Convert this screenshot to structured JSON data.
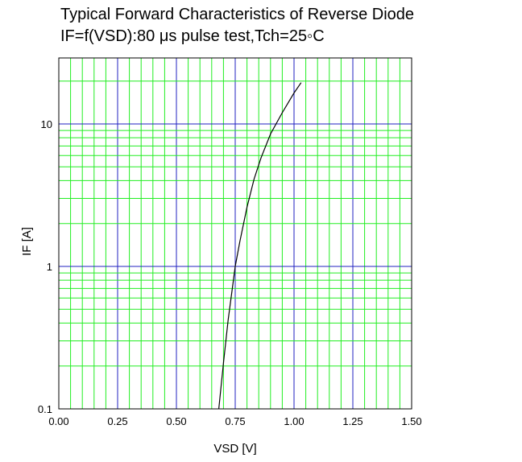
{
  "chart_data": {
    "type": "line",
    "title": "Typical Forward Characteristics of Reverse Diode",
    "subtitle": "IF=f(VSD):80 μs pulse test,Tch=25◦C",
    "xlabel": "VSD [V]",
    "ylabel": "IF [A]",
    "xlim": [
      0,
      1.5
    ],
    "ylim": [
      0.1,
      20
    ],
    "yscale": "log",
    "grid": true,
    "x_ticks": [
      "0.00",
      "0.25",
      "0.50",
      "0.75",
      "1.00",
      "1.25",
      "1.50"
    ],
    "y_ticks": [
      "0.1",
      "1",
      "10"
    ],
    "series": [
      {
        "color": "#000000",
        "x": [
          0.68,
          0.7,
          0.72,
          0.74,
          0.75,
          0.77,
          0.8,
          0.83,
          0.86,
          0.9,
          0.95,
          1.0,
          1.03
        ],
        "y": [
          0.1,
          0.21,
          0.42,
          0.75,
          1.0,
          1.5,
          2.6,
          4.1,
          5.8,
          8.5,
          12.0,
          16.5,
          19.5
        ]
      }
    ]
  },
  "colors": {
    "major_grid": "#2020c0",
    "minor_grid": "#22ee22",
    "curve": "#000000"
  }
}
